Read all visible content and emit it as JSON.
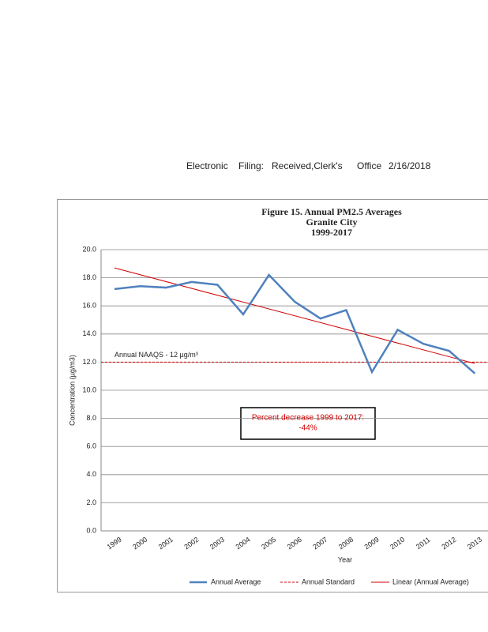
{
  "header": [
    "Electronic",
    "Filing:",
    "Received,Clerk's",
    "Office",
    "2/16/2018"
  ],
  "chart_data": {
    "type": "line",
    "title": [
      "Figure 15.  Annual PM2.5 Averages",
      "Granite City",
      "1999-2017"
    ],
    "x_label": "Year",
    "y_label": "Concentration (µg/m3)",
    "categories": [
      "1999",
      "2000",
      "2001",
      "2002",
      "2003",
      "2004",
      "2005",
      "2006",
      "2007",
      "2008",
      "2009",
      "2010",
      "2011",
      "2012",
      "2013"
    ],
    "series": [
      {
        "name": "Annual Average",
        "color": "#4f81bd",
        "values": [
          17.2,
          17.4,
          17.3,
          17.7,
          17.5,
          15.4,
          18.2,
          16.3,
          15.1,
          15.7,
          11.3,
          14.3,
          13.3,
          12.8,
          11.2
        ]
      }
    ],
    "standard": {
      "name": "Annual Standard",
      "value": 12,
      "label": "Annual NAAQS - 12 µg/m³",
      "color": "#d00000"
    },
    "trend": {
      "name": "Linear (Annual Average)",
      "start": 18.7,
      "end": 11.9,
      "color": "#d00000"
    },
    "annotation": [
      "Percent decrease 1999 to 2017:",
      "-44%"
    ],
    "ylim": [
      0,
      20
    ],
    "yticks": [
      {
        "value": 0,
        "label": "0.0"
      },
      {
        "value": 2,
        "label": "2.0"
      },
      {
        "value": 4,
        "label": "4.0"
      },
      {
        "value": 6,
        "label": "6.0"
      },
      {
        "value": 8,
        "label": "8.0"
      },
      {
        "value": 10,
        "label": "10.0"
      },
      {
        "value": 12,
        "label": "12.0"
      },
      {
        "value": 14,
        "label": "14.0"
      },
      {
        "value": 16,
        "label": "16.0"
      },
      {
        "value": 18,
        "label": "18.0"
      },
      {
        "value": 20,
        "label": "20.0"
      }
    ],
    "grid": true
  }
}
